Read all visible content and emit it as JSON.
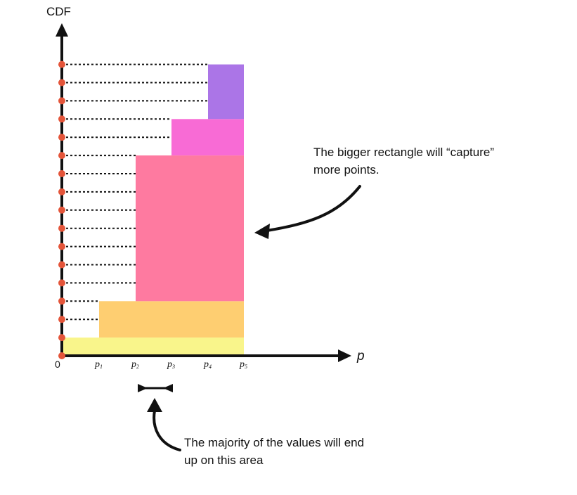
{
  "axes": {
    "y_title": "CDF",
    "x_title": "p",
    "origin_label": "0",
    "x_ticks": [
      {
        "base": "p",
        "sub": "1"
      },
      {
        "base": "p",
        "sub": "2"
      },
      {
        "base": "p",
        "sub": "3"
      },
      {
        "base": "p",
        "sub": "4"
      },
      {
        "base": "p",
        "sub": "5"
      }
    ]
  },
  "cdf_points_count": 16,
  "bands": [
    {
      "name": "band-yellow",
      "color": "#f9f58b",
      "from_tick": 0,
      "to_tick": 5,
      "levels": [
        0,
        1
      ]
    },
    {
      "name": "band-orange",
      "color": "#fece71",
      "from_tick": 1,
      "to_tick": 5,
      "levels": [
        1,
        3
      ]
    },
    {
      "name": "band-pink",
      "color": "#fe7aa0",
      "from_tick": 2,
      "to_tick": 5,
      "levels": [
        3,
        11
      ]
    },
    {
      "name": "band-magenta",
      "color": "#f86bd5",
      "from_tick": 3,
      "to_tick": 5,
      "levels": [
        11,
        13
      ]
    },
    {
      "name": "band-purple",
      "color": "#ab75e7",
      "from_tick": 4,
      "to_tick": 5,
      "levels": [
        13,
        16
      ]
    }
  ],
  "colors": {
    "point": "#e4553a",
    "axis": "#111111"
  },
  "annotations": {
    "capture_line1": "The bigger rectangle will “capture”",
    "capture_line2": "more points.",
    "majority_line1": "The majority of the values will end",
    "majority_line2": "up on this area"
  }
}
